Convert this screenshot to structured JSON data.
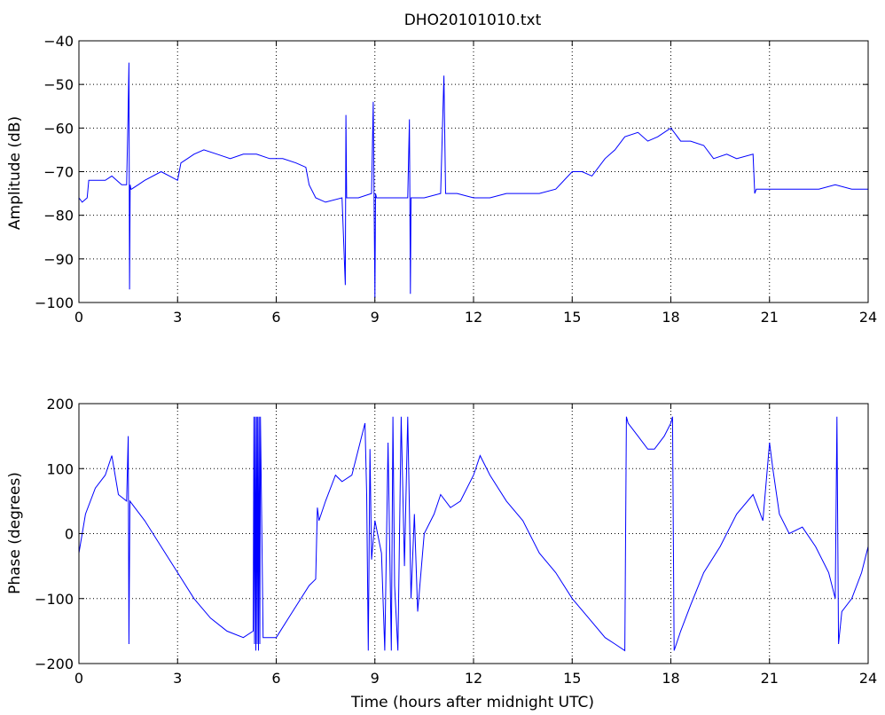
{
  "chart_data": [
    {
      "type": "line",
      "title": "DHO20101010.txt",
      "xlabel": "",
      "ylabel": "Amplitude (dB)",
      "xlim": [
        0,
        24
      ],
      "ylim": [
        -100,
        -40
      ],
      "grid": true,
      "x_ticks": [
        "0",
        "3",
        "6",
        "9",
        "12",
        "15",
        "18",
        "21",
        "24"
      ],
      "y_ticks": [
        "-40",
        "-50",
        "-60",
        "-70",
        "-80",
        "-90",
        "-100"
      ],
      "line_color": "#0000ff",
      "series": [
        {
          "x": [
            0,
            0.1,
            0.25,
            0.3,
            0.5,
            0.8,
            1.0,
            1.3,
            1.45,
            1.5,
            1.52,
            1.54,
            1.56,
            1.58,
            1.6,
            1.8,
            2.0,
            2.5,
            3.0,
            3.1,
            3.3,
            3.5,
            3.8,
            4.2,
            4.6,
            5.0,
            5.4,
            5.8,
            6.2,
            6.6,
            6.9,
            7.0,
            7.2,
            7.5,
            8.0,
            8.1,
            8.12,
            8.14,
            8.2,
            8.5,
            8.9,
            8.95,
            9.0,
            9.02,
            9.05,
            9.3,
            9.6,
            10.0,
            10.05,
            10.08,
            10.1,
            10.5,
            11.0,
            11.1,
            11.15,
            11.2,
            11.5,
            12.0,
            12.5,
            13.0,
            13.5,
            14.0,
            14.5,
            15.0,
            15.3,
            15.6,
            16.0,
            16.3,
            16.6,
            17.0,
            17.3,
            17.6,
            18.0,
            18.3,
            18.6,
            19.0,
            19.3,
            19.7,
            20.0,
            20.5,
            20.55,
            20.6,
            21.0,
            21.5,
            22.0,
            22.5,
            23.0,
            23.5,
            24.0
          ],
          "values": [
            -76,
            -77,
            -76,
            -72,
            -72,
            -72,
            -71,
            -73,
            -73,
            -55,
            -45,
            -97,
            -73,
            -74,
            -74,
            -73,
            -72,
            -70,
            -72,
            -68,
            -67,
            -66,
            -65,
            -66,
            -67,
            -66,
            -66,
            -67,
            -67,
            -68,
            -69,
            -73,
            -76,
            -77,
            -76,
            -96,
            -57,
            -76,
            -76,
            -76,
            -75,
            -54,
            -99,
            -75,
            -76,
            -76,
            -76,
            -76,
            -58,
            -98,
            -76,
            -76,
            -75,
            -48,
            -75,
            -75,
            -75,
            -76,
            -76,
            -75,
            -75,
            -75,
            -74,
            -70,
            -70,
            -71,
            -67,
            -65,
            -62,
            -61,
            -63,
            -62,
            -60,
            -63,
            -63,
            -64,
            -67,
            -66,
            -67,
            -66,
            -75,
            -74,
            -74,
            -74,
            -74,
            -74,
            -73,
            -74,
            -74
          ]
        }
      ]
    },
    {
      "type": "line",
      "title": "",
      "xlabel": "Time (hours after midnight UTC)",
      "ylabel": "Phase (degrees)",
      "xlim": [
        0,
        24
      ],
      "ylim": [
        -200,
        200
      ],
      "grid": true,
      "x_ticks": [
        "0",
        "3",
        "6",
        "9",
        "12",
        "15",
        "18",
        "21",
        "24"
      ],
      "y_ticks": [
        "200",
        "100",
        "0",
        "-100",
        "-200"
      ],
      "line_color": "#0000ff",
      "series": [
        {
          "x": [
            0,
            0.2,
            0.5,
            0.8,
            1.0,
            1.2,
            1.45,
            1.5,
            1.52,
            1.55,
            1.7,
            2.0,
            2.5,
            3.0,
            3.5,
            4.0,
            4.5,
            5.0,
            5.3,
            5.32,
            5.34,
            5.36,
            5.38,
            5.4,
            5.42,
            5.44,
            5.46,
            5.48,
            5.5,
            5.52,
            5.6,
            6.0,
            6.5,
            7.0,
            7.2,
            7.25,
            7.3,
            7.5,
            7.8,
            8.0,
            8.3,
            8.6,
            8.7,
            8.75,
            8.8,
            8.85,
            8.9,
            9.0,
            9.2,
            9.3,
            9.4,
            9.5,
            9.55,
            9.6,
            9.7,
            9.8,
            9.9,
            10.0,
            10.1,
            10.2,
            10.3,
            10.5,
            10.8,
            11.0,
            11.3,
            11.6,
            12.0,
            12.2,
            12.5,
            13.0,
            13.5,
            14.0,
            14.5,
            15.0,
            15.5,
            16.0,
            16.3,
            16.6,
            16.65,
            16.7,
            17.0,
            17.3,
            17.5,
            17.8,
            18.0,
            18.05,
            18.1,
            18.3,
            18.6,
            19.0,
            19.5,
            20.0,
            20.5,
            20.8,
            21.0,
            21.1,
            21.3,
            21.6,
            22.0,
            22.4,
            22.8,
            23.0,
            23.05,
            23.1,
            23.2,
            23.5,
            23.8,
            24.0
          ],
          "values": [
            -30,
            30,
            70,
            90,
            120,
            60,
            50,
            150,
            -170,
            50,
            40,
            20,
            -20,
            -60,
            -100,
            -130,
            -150,
            -160,
            -150,
            180,
            -170,
            180,
            -180,
            180,
            -170,
            180,
            -180,
            180,
            -170,
            180,
            -160,
            -160,
            -120,
            -80,
            -70,
            40,
            20,
            50,
            90,
            80,
            90,
            150,
            170,
            60,
            -180,
            130,
            -40,
            20,
            -30,
            -180,
            140,
            -180,
            180,
            -80,
            -180,
            180,
            -50,
            180,
            -100,
            30,
            -120,
            0,
            30,
            60,
            40,
            50,
            90,
            120,
            90,
            50,
            20,
            -30,
            -60,
            -100,
            -130,
            -160,
            -170,
            -180,
            180,
            170,
            150,
            130,
            130,
            150,
            170,
            180,
            -180,
            -150,
            -110,
            -60,
            -20,
            30,
            60,
            20,
            140,
            100,
            30,
            0,
            10,
            -20,
            -60,
            -100,
            180,
            -170,
            -120,
            -100,
            -60,
            -20
          ]
        }
      ]
    }
  ]
}
